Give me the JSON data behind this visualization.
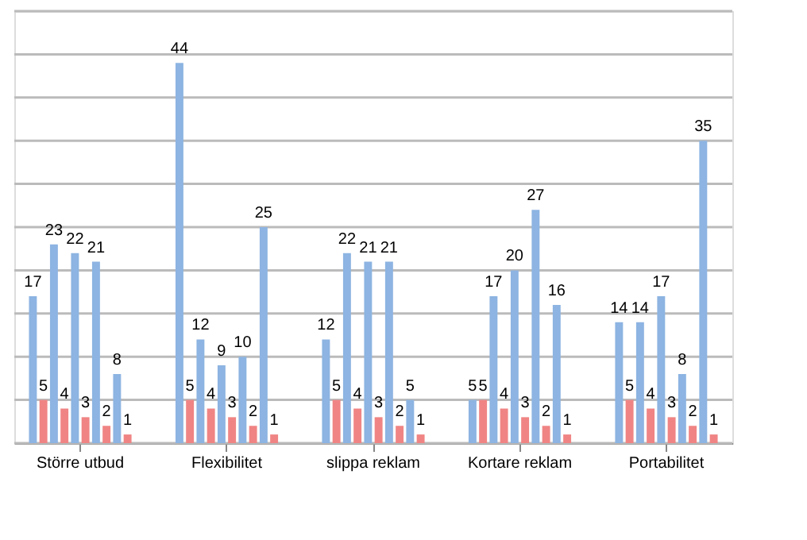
{
  "chart_data": {
    "type": "bar",
    "categories": [
      "Större utbud",
      "Flexibilitet",
      "slippa reklam",
      "Kortare reklam",
      "Portabilitet"
    ],
    "series": [
      {
        "color": "#8db4e2",
        "values": [
          17,
          44,
          12,
          5,
          14
        ]
      },
      {
        "color": "#f08484",
        "values": [
          5,
          5,
          5,
          5,
          5
        ]
      },
      {
        "color": "#8db4e2",
        "values": [
          23,
          12,
          22,
          17,
          14
        ]
      },
      {
        "color": "#f08484",
        "values": [
          4,
          4,
          4,
          4,
          4
        ]
      },
      {
        "color": "#8db4e2",
        "values": [
          22,
          9,
          21,
          20,
          17
        ]
      },
      {
        "color": "#f08484",
        "values": [
          3,
          3,
          3,
          3,
          3
        ]
      },
      {
        "color": "#8db4e2",
        "values": [
          21,
          10,
          21,
          27,
          8
        ]
      },
      {
        "color": "#f08484",
        "values": [
          2,
          2,
          2,
          2,
          2
        ]
      },
      {
        "color": "#8db4e2",
        "values": [
          8,
          25,
          5,
          16,
          35
        ]
      },
      {
        "color": "#f08484",
        "values": [
          1,
          1,
          1,
          1,
          1
        ]
      }
    ],
    "ylim": [
      0,
      50
    ],
    "yticks": [
      0,
      {
        "value": 5,
        "label": null
      },
      {
        "value": 10,
        "label": null
      },
      {
        "value": 15,
        "label": null
      },
      {
        "value": 20,
        "label": null
      },
      {
        "value": 25,
        "label": null
      },
      {
        "value": 30,
        "label": null
      },
      {
        "value": 35,
        "label": null
      },
      {
        "value": 40,
        "label": null
      },
      {
        "value": 45,
        "label": null
      },
      {
        "value": 50,
        "label": null
      }
    ],
    "tick_labels": "x",
    "grid": "y",
    "data_labels": true
  }
}
